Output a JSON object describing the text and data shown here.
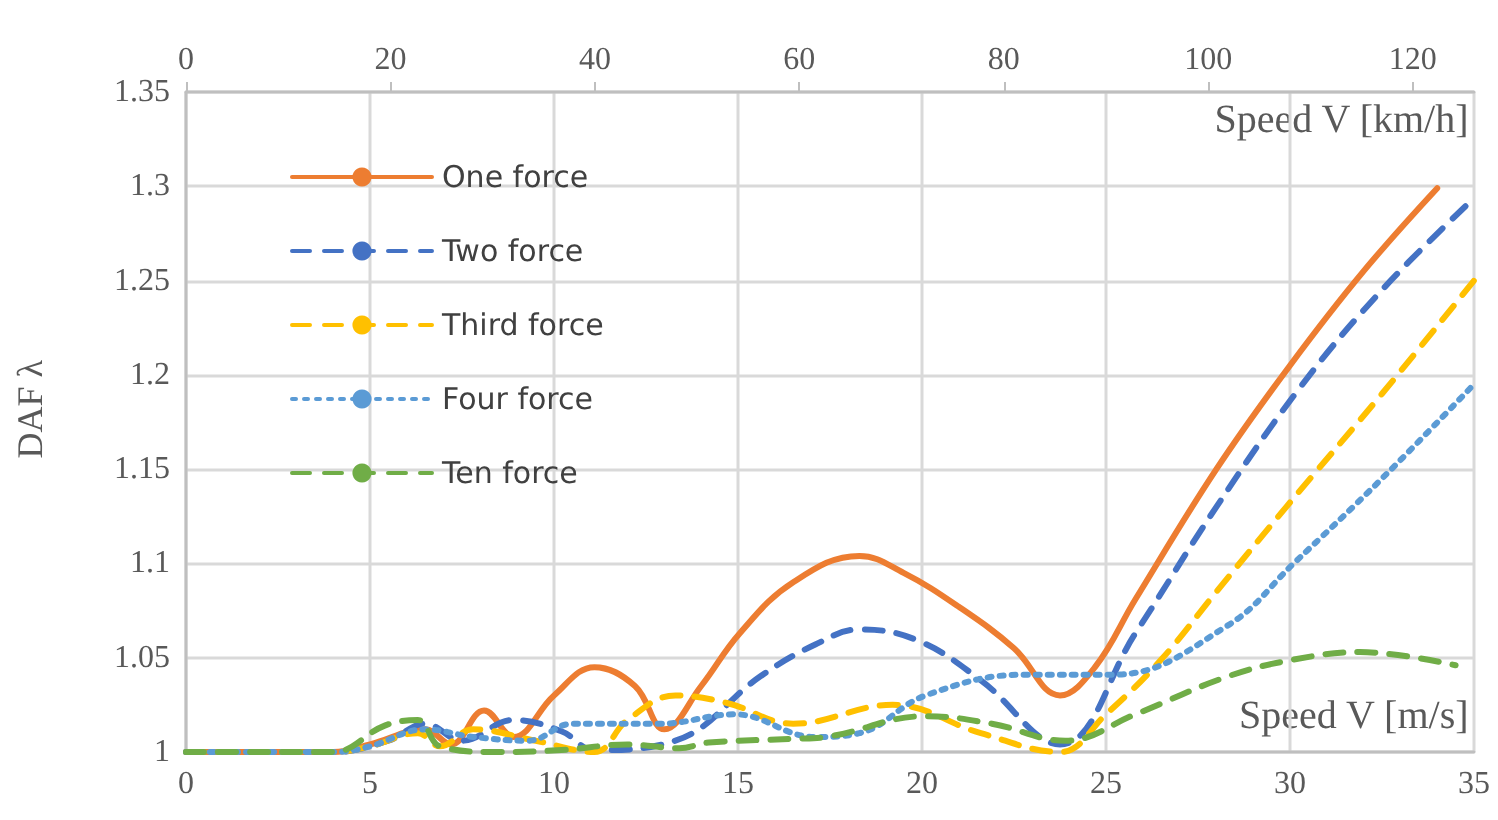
{
  "chart_data": {
    "type": "line",
    "xlabel": "Speed V [m/s]",
    "x2label": "Speed V [km/h]",
    "ylabel": "DAF λ",
    "xlim": [
      0,
      35
    ],
    "xticks": [
      0,
      5,
      10,
      15,
      20,
      25,
      30,
      35
    ],
    "x2lim": [
      0,
      126
    ],
    "x2ticks": [
      0,
      20,
      40,
      60,
      80,
      100,
      120
    ],
    "ylim": [
      1,
      1.35
    ],
    "yticks": [
      1,
      1.05,
      1.1,
      1.15,
      1.2,
      1.25,
      1.3,
      1.35
    ],
    "grid": true,
    "legend": "top left",
    "marker": "none",
    "series": [
      {
        "name": "One force",
        "color": "#ed7d31",
        "line_style": "solid",
        "x": [
          0,
          2,
          4,
          5,
          6.5,
          7.2,
          8.1,
          8.9,
          10,
          11.1,
          12.2,
          13,
          14,
          15.05,
          16.5,
          18.3,
          19.5,
          21,
          22.5,
          23.75,
          24.7,
          25.8,
          28,
          30,
          32,
          34
        ],
        "values": [
          1,
          1,
          1,
          1.004,
          1.012,
          1.004,
          1.022,
          1.008,
          1.03,
          1.045,
          1.035,
          1.012,
          1.035,
          1.063,
          1.09,
          1.104,
          1.095,
          1.077,
          1.055,
          1.03,
          1.045,
          1.081,
          1.15,
          1.205,
          1.255,
          1.299
        ]
      },
      {
        "name": "Two force",
        "color": "#4472c4",
        "line_style": "dashed",
        "x": [
          0,
          2,
          4,
          5.5,
          6.5,
          7.5,
          8.9,
          10.2,
          11.1,
          13.3,
          15.6,
          17.1,
          18.3,
          19.9,
          21.6,
          23.75,
          25.8,
          28,
          30.3,
          32.5,
          34.8
        ],
        "values": [
          1,
          1,
          1,
          1.006,
          1.015,
          1.006,
          1.017,
          1.011,
          1.001,
          1.006,
          1.04,
          1.057,
          1.065,
          1.059,
          1.038,
          1.004,
          1.063,
          1.13,
          1.194,
          1.245,
          1.29
        ]
      },
      {
        "name": "Third force",
        "color": "#ffc000",
        "line_style": "dashed",
        "x": [
          0,
          2,
          4,
          5,
          6.3,
          6.9,
          7.8,
          9.5,
          11.1,
          12,
          13.3,
          14.7,
          16.5,
          19.2,
          21.6,
          23.75,
          25,
          26.5,
          28,
          29.9,
          32.5,
          35
        ],
        "values": [
          1,
          1,
          1,
          1.003,
          1.01,
          1.003,
          1.012,
          1.006,
          1,
          1.017,
          1.03,
          1.026,
          1.015,
          1.025,
          1.01,
          1,
          1.02,
          1.049,
          1.085,
          1.13,
          1.19,
          1.25
        ]
      },
      {
        "name": "Four force",
        "color": "#5b9bd5",
        "line_style": "dotted",
        "x": [
          0,
          2,
          4,
          5,
          6.5,
          7.8,
          9.3,
          10.5,
          12.9,
          14.9,
          17.1,
          18.3,
          20.1,
          22.8,
          25.2,
          28.3,
          30.1,
          32.5,
          35
        ],
        "values": [
          1,
          1,
          1,
          1.003,
          1.012,
          1.008,
          1.006,
          1.015,
          1.015,
          1.02,
          1.008,
          1.01,
          1.03,
          1.041,
          1.041,
          1.067,
          1.1,
          1.145,
          1.195
        ]
      },
      {
        "name": "Ten force",
        "color": "#70ad47",
        "line_style": "dashed",
        "x": [
          0,
          2,
          4,
          5.4,
          6.3,
          6.9,
          8.4,
          10.2,
          12,
          13.4,
          14.2,
          16.5,
          17.4,
          20.1,
          21.9,
          23.9,
          25.8,
          28.3,
          30.1,
          31.9,
          34.5
        ],
        "values": [
          1,
          1,
          1,
          1.014,
          1.017,
          1.003,
          1,
          1.001,
          1.004,
          1.002,
          1.005,
          1.007,
          1.008,
          1.019,
          1.015,
          1.006,
          1.02,
          1.04,
          1.049,
          1.053,
          1.046
        ]
      }
    ]
  }
}
